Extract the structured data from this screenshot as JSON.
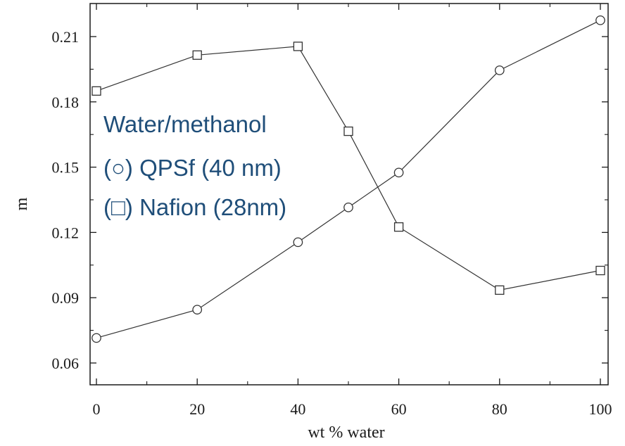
{
  "chart_data": {
    "type": "line",
    "xlabel": "wt % water",
    "ylabel": "m",
    "xlim": [
      0,
      100
    ],
    "ylim": [
      0.055,
      0.225
    ],
    "x_ticks": [
      0,
      20,
      40,
      60,
      80,
      100
    ],
    "y_ticks": [
      0.06,
      0.09,
      0.12,
      0.15,
      0.18,
      0.21
    ],
    "x_tick_labels": [
      "0",
      "20",
      "40",
      "60",
      "80",
      "100"
    ],
    "y_tick_labels": [
      "0.06",
      "0.09",
      "0.12",
      "0.15",
      "0.18",
      "0.21"
    ],
    "grid": false,
    "series": [
      {
        "marker": "circle",
        "x": [
          0,
          20,
          40,
          50,
          60,
          80,
          100
        ],
        "y": [
          0.0715,
          0.0845,
          0.1155,
          0.1315,
          0.1475,
          0.1945,
          0.2175
        ]
      },
      {
        "marker": "square",
        "x": [
          0,
          20,
          40,
          50,
          60,
          80,
          100
        ],
        "y": [
          0.185,
          0.2015,
          0.2055,
          0.1665,
          0.1225,
          0.0935,
          0.1025
        ]
      }
    ],
    "annotation": [
      "Water/methanol",
      "(○) QPSf (40 nm)",
      "(□) Nafion (28nm)"
    ]
  }
}
